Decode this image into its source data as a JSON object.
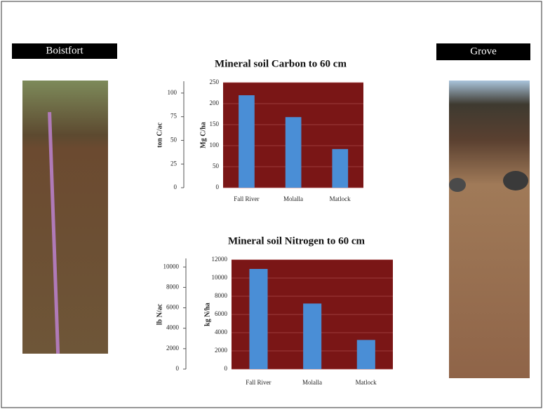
{
  "labels": {
    "left": "Boistfort",
    "right": "Grove"
  },
  "chart_data": [
    {
      "type": "bar",
      "title": "Mineral soil Carbon to 60 cm",
      "categories": [
        "Fall River",
        "Molalla",
        "Matlock"
      ],
      "values": [
        220,
        168,
        92
      ],
      "color": "#4a8ed6",
      "plot_color": "#7a1616",
      "ylabel": "Mg C/ha",
      "ylim": [
        0,
        250
      ],
      "yticks": [
        0,
        50,
        100,
        150,
        200,
        250
      ],
      "y2label": "ton C/ac",
      "y2lim": [
        0,
        111
      ],
      "y2ticks": [
        0,
        25,
        50,
        75,
        100
      ],
      "grid": true
    },
    {
      "type": "bar",
      "title": "Mineral soil Nitrogen to 60 cm",
      "categories": [
        "Fall River",
        "Molalla",
        "Matlock"
      ],
      "values": [
        11000,
        7200,
        3200
      ],
      "color": "#4a8ed6",
      "plot_color": "#7a1616",
      "ylabel": "kg N/ha",
      "ylim": [
        0,
        12000
      ],
      "yticks": [
        0,
        2000,
        4000,
        6000,
        8000,
        10000,
        12000
      ],
      "y2label": "lb N/ac",
      "y2lim": [
        0,
        10700
      ],
      "y2ticks": [
        0,
        2000,
        4000,
        6000,
        8000,
        10000
      ],
      "grid": true
    }
  ]
}
